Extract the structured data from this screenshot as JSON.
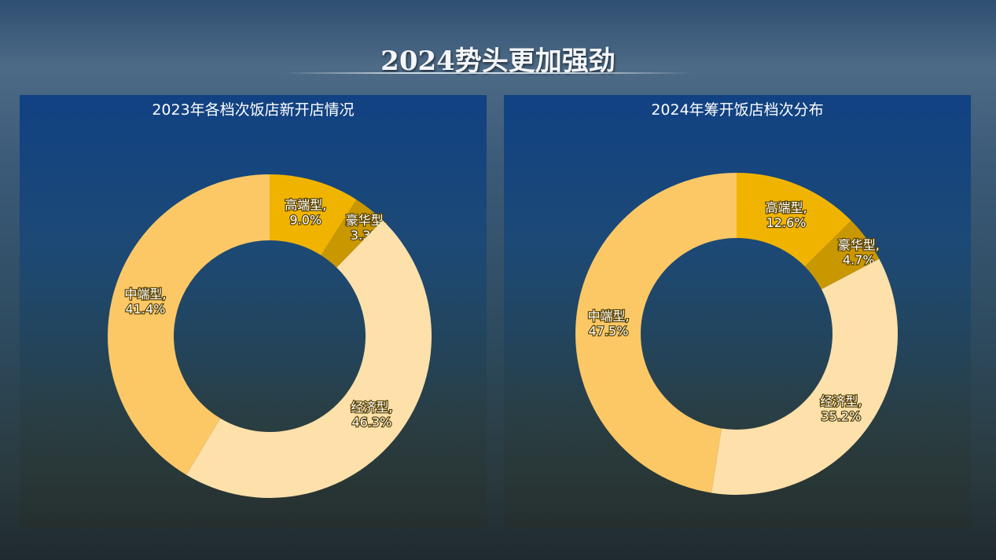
{
  "title": "2024势头更加强劲",
  "chart_data": [
    {
      "type": "pie",
      "title": "2023年各档次饭店新开店情况",
      "categories": [
        "高端型",
        "豪华型",
        "经济型",
        "中端型"
      ],
      "values": [
        9.0,
        3.3,
        46.3,
        41.4
      ],
      "labels": [
        "9.0%",
        "3.3%",
        "46.3%",
        "41.4%"
      ],
      "colors": [
        "#f0b400",
        "#c99700",
        "#fde0aa",
        "#fcc866"
      ]
    },
    {
      "type": "pie",
      "title": "2024年筹开饭店档次分布",
      "categories": [
        "高端型",
        "豪华型",
        "经济型",
        "中端型"
      ],
      "values": [
        12.6,
        4.7,
        35.2,
        47.5
      ],
      "labels": [
        "12.6%",
        "4.7%",
        "35.2%",
        "47.5%"
      ],
      "colors": [
        "#f0b400",
        "#c99700",
        "#fde0aa",
        "#fcc866"
      ]
    }
  ]
}
